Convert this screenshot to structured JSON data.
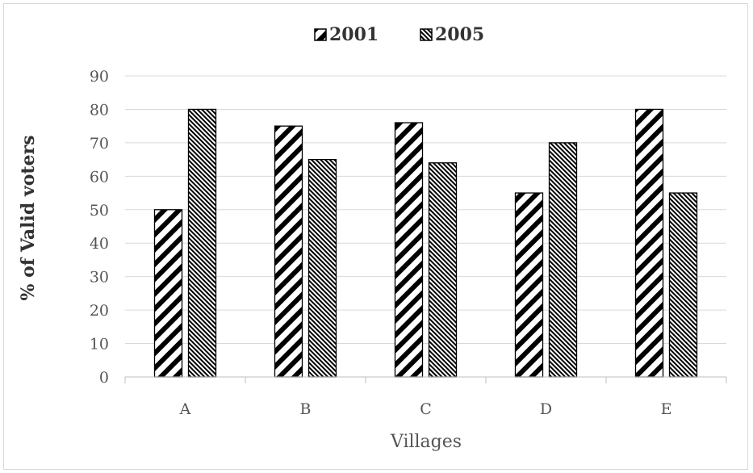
{
  "chart_data": {
    "type": "bar",
    "title": "",
    "xlabel": "Villages",
    "ylabel": "% of Valid voters",
    "categories": [
      "A",
      "B",
      "C",
      "D",
      "E"
    ],
    "series": [
      {
        "name": "2001",
        "values": [
          50,
          75,
          76,
          55,
          80
        ],
        "pattern": "wide-diagonal-stripes"
      },
      {
        "name": "2005",
        "values": [
          80,
          65,
          64,
          70,
          55
        ],
        "pattern": "fine-diagonal-hatch"
      }
    ],
    "ylim": [
      0,
      90
    ],
    "yticks": [
      0,
      10,
      20,
      30,
      40,
      50,
      60,
      70,
      80,
      90
    ],
    "grid": "horizontal",
    "legend_position": "top-center",
    "colors": {
      "bar_fill": "#000000",
      "bar_background": "#ffffff",
      "grid": "#d9d9d9",
      "axis": "#bfbfbf",
      "text": "#555555"
    }
  }
}
